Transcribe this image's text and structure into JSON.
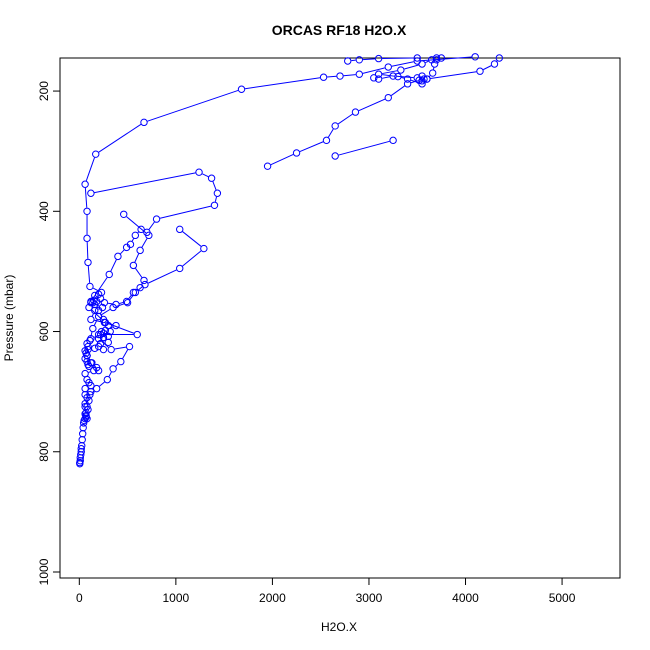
{
  "chart_data": {
    "type": "line",
    "title": "ORCAS RF18 H2O.X",
    "xlabel": "H2O.X",
    "ylabel": "Pressure (mbar)",
    "xlim": [
      -200,
      5600
    ],
    "ylim": [
      1010,
      145
    ],
    "y_reversed": true,
    "x_ticks": [
      0,
      1000,
      2000,
      3000,
      4000,
      5000
    ],
    "y_ticks": [
      200,
      400,
      600,
      800,
      1000
    ],
    "grid": false,
    "series_color": "#0000ff",
    "series": [
      {
        "points": [
          [
            5,
            820
          ],
          [
            5,
            818
          ],
          [
            10,
            815
          ],
          [
            10,
            810
          ],
          [
            15,
            805
          ],
          [
            20,
            800
          ],
          [
            20,
            795
          ],
          [
            25,
            790
          ],
          [
            30,
            780
          ],
          [
            35,
            770
          ],
          [
            40,
            760
          ],
          [
            45,
            752
          ],
          [
            50,
            748
          ],
          [
            60,
            745
          ],
          [
            70,
            742
          ],
          [
            80,
            745
          ],
          [
            70,
            740
          ],
          [
            60,
            737
          ],
          [
            70,
            735
          ],
          [
            90,
            730
          ],
          [
            80,
            725
          ],
          [
            60,
            720
          ],
          [
            100,
            715
          ],
          [
            80,
            710
          ],
          [
            60,
            705
          ],
          [
            120,
            700
          ],
          [
            60,
            695
          ],
          [
            120,
            690
          ],
          [
            100,
            685
          ],
          [
            80,
            680
          ],
          [
            60,
            670
          ],
          [
            150,
            665
          ],
          [
            180,
            660
          ],
          [
            100,
            658
          ],
          [
            90,
            655
          ],
          [
            120,
            652
          ],
          [
            80,
            650
          ],
          [
            60,
            645
          ],
          [
            80,
            640
          ],
          [
            60,
            632
          ],
          [
            70,
            636
          ],
          [
            90,
            630
          ],
          [
            160,
            628
          ],
          [
            200,
            625
          ],
          [
            250,
            630
          ],
          [
            220,
            620
          ],
          [
            300,
            618
          ],
          [
            250,
            610
          ],
          [
            300,
            608
          ],
          [
            200,
            605
          ],
          [
            250,
            603
          ],
          [
            230,
            600
          ],
          [
            270,
            598
          ],
          [
            380,
            590
          ],
          [
            260,
            585
          ],
          [
            120,
            580
          ],
          [
            160,
            565
          ],
          [
            240,
            560
          ],
          [
            120,
            552
          ],
          [
            150,
            548
          ],
          [
            220,
            545
          ],
          [
            160,
            540
          ],
          [
            200,
            538
          ],
          [
            230,
            535
          ],
          [
            110,
            525
          ],
          [
            90,
            485
          ],
          [
            80,
            445
          ],
          [
            80,
            400
          ],
          [
            60,
            355
          ],
          [
            170,
            305
          ],
          [
            670,
            252
          ],
          [
            1680,
            197
          ],
          [
            2530,
            177
          ],
          [
            2700,
            175
          ],
          [
            2900,
            172
          ],
          [
            3200,
            160
          ],
          [
            3500,
            150
          ],
          [
            4100,
            143
          ]
        ]
      },
      {
        "points": [
          [
            120,
            370
          ],
          [
            1240,
            335
          ],
          [
            1370,
            345
          ],
          [
            1430,
            370
          ],
          [
            1400,
            390
          ],
          [
            800,
            413
          ],
          [
            700,
            435
          ],
          [
            640,
            430
          ],
          [
            580,
            440
          ],
          [
            530,
            455
          ],
          [
            490,
            460
          ],
          [
            400,
            475
          ],
          [
            310,
            505
          ],
          [
            120,
            550
          ],
          [
            140,
            552
          ],
          [
            160,
            555
          ],
          [
            200,
            565
          ],
          [
            250,
            580
          ],
          [
            300,
            590
          ],
          [
            320,
            600
          ],
          [
            250,
            610
          ],
          [
            200,
            612
          ],
          [
            330,
            630
          ],
          [
            520,
            625
          ],
          [
            430,
            650
          ],
          [
            350,
            662
          ],
          [
            290,
            680
          ],
          [
            180,
            695
          ],
          [
            110,
            705
          ],
          [
            60,
            725
          ]
        ]
      },
      {
        "points": [
          [
            460,
            405
          ],
          [
            720,
            440
          ],
          [
            630,
            465
          ],
          [
            560,
            490
          ],
          [
            670,
            515
          ],
          [
            630,
            527
          ],
          [
            560,
            535
          ],
          [
            490,
            550
          ],
          [
            380,
            555
          ],
          [
            260,
            552
          ],
          [
            180,
            550
          ],
          [
            100,
            560
          ],
          [
            270,
            585
          ],
          [
            600,
            605
          ],
          [
            220,
            605
          ],
          [
            120,
            612
          ],
          [
            80,
            620
          ],
          [
            80,
            640
          ],
          [
            130,
            652
          ],
          [
            200,
            665
          ]
        ]
      },
      {
        "points": [
          [
            1040,
            430
          ],
          [
            1290,
            462
          ],
          [
            1040,
            495
          ],
          [
            680,
            522
          ],
          [
            580,
            535
          ],
          [
            500,
            552
          ],
          [
            350,
            560
          ],
          [
            200,
            575
          ],
          [
            140,
            595
          ],
          [
            110,
            615
          ],
          [
            90,
            625
          ],
          [
            80,
            640
          ]
        ]
      },
      {
        "points": [
          [
            1950,
            325
          ],
          [
            2250,
            303
          ],
          [
            2560,
            282
          ],
          [
            2650,
            258
          ],
          [
            2860,
            235
          ],
          [
            3200,
            211
          ],
          [
            3400,
            188
          ],
          [
            3520,
            182
          ],
          [
            3600,
            180
          ],
          [
            4150,
            167
          ],
          [
            4300,
            155
          ],
          [
            4350,
            145
          ]
        ]
      },
      {
        "points": [
          [
            2650,
            308
          ],
          [
            3250,
            282
          ]
        ]
      },
      {
        "points": [
          [
            3050,
            178
          ],
          [
            3100,
            180
          ],
          [
            3250,
            175
          ],
          [
            3500,
            178
          ],
          [
            3550,
            175
          ],
          [
            3570,
            180
          ],
          [
            3550,
            183
          ],
          [
            3600,
            180
          ],
          [
            3660,
            170
          ],
          [
            3680,
            155
          ],
          [
            3700,
            148
          ],
          [
            3750,
            145
          ]
        ]
      },
      {
        "points": [
          [
            2780,
            150
          ],
          [
            2900,
            148
          ],
          [
            3100,
            146
          ],
          [
            3500,
            145
          ]
        ]
      },
      {
        "points": [
          [
            3550,
            188
          ],
          [
            3400,
            180
          ],
          [
            3300,
            176
          ],
          [
            3100,
            172
          ],
          [
            3330,
            165
          ],
          [
            3550,
            155
          ],
          [
            3650,
            148
          ],
          [
            3700,
            145
          ]
        ]
      }
    ]
  }
}
